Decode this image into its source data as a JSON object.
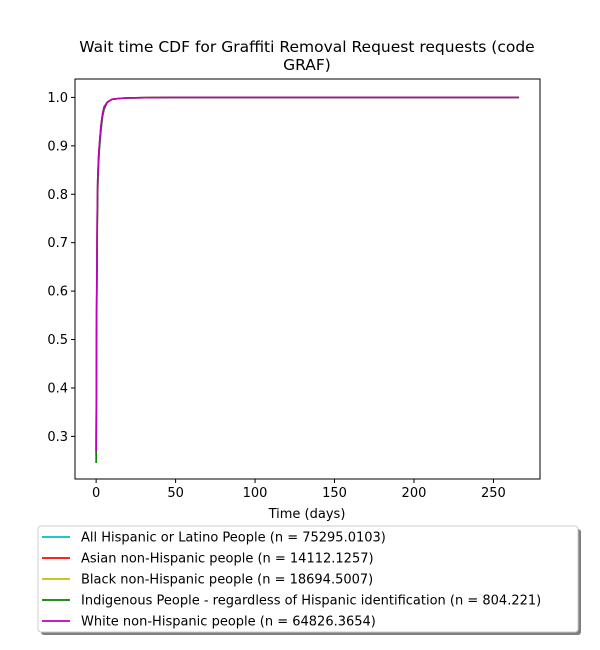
{
  "chart_data": {
    "type": "line",
    "title_line1": "Wait time CDF for Graffiti Removal Request  requests (code",
    "title_line2": "GRAF)",
    "xlabel": "Time (days)",
    "ylabel": "",
    "xlim": [
      -13.3,
      279.3
    ],
    "ylim": [
      0.212,
      1.038
    ],
    "xticks": [
      0,
      50,
      100,
      150,
      200,
      250
    ],
    "xtick_labels": [
      "0",
      "50",
      "100",
      "150",
      "200",
      "250"
    ],
    "yticks": [
      0.3,
      0.4,
      0.5,
      0.6,
      0.7,
      0.8,
      0.9,
      1.0
    ],
    "ytick_labels": [
      "0.3",
      "0.4",
      "0.5",
      "0.6",
      "0.7",
      "0.8",
      "0.9",
      "1.0"
    ],
    "grid": false,
    "legend_position": "below",
    "series": [
      {
        "name": "All Hispanic or Latino People (n = 75295.0103)",
        "color": "#00bfbf",
        "x": [
          0,
          0.3,
          0.7,
          1,
          1.5,
          2,
          3,
          4,
          5,
          7,
          10,
          15,
          20,
          30,
          50,
          100,
          266
        ],
        "y": [
          0.26,
          0.55,
          0.75,
          0.83,
          0.87,
          0.9,
          0.94,
          0.965,
          0.98,
          0.99,
          0.996,
          0.998,
          0.999,
          0.9995,
          1.0,
          1.0,
          1.0
        ]
      },
      {
        "name": "Asian non-Hispanic people (n = 14112.1257)",
        "color": "#ff0000",
        "x": [
          0,
          0.3,
          0.7,
          1,
          1.5,
          2,
          3,
          4,
          5,
          7,
          10,
          15,
          20,
          30,
          50,
          100,
          266
        ],
        "y": [
          0.27,
          0.56,
          0.76,
          0.83,
          0.875,
          0.9,
          0.94,
          0.965,
          0.98,
          0.99,
          0.996,
          0.998,
          0.999,
          0.9995,
          1.0,
          1.0,
          1.0
        ]
      },
      {
        "name": "Black non-Hispanic people (n = 18694.5007)",
        "color": "#bfbf00",
        "x": [
          0,
          0.3,
          0.7,
          1,
          1.5,
          2,
          3,
          4,
          5,
          7,
          10,
          15,
          20,
          30,
          50,
          100,
          266
        ],
        "y": [
          0.26,
          0.55,
          0.75,
          0.82,
          0.87,
          0.9,
          0.935,
          0.96,
          0.978,
          0.99,
          0.996,
          0.998,
          0.999,
          0.9995,
          1.0,
          1.0,
          1.0
        ]
      },
      {
        "name": "Indigenous People - regardless of Hispanic identification (n = 804.221)",
        "color": "#008000",
        "x": [
          0,
          0.3,
          0.7,
          1,
          1.5,
          2,
          3,
          4,
          5,
          7,
          10,
          15,
          20,
          30,
          50,
          100,
          266
        ],
        "y": [
          0.245,
          0.52,
          0.72,
          0.81,
          0.86,
          0.89,
          0.93,
          0.96,
          0.975,
          0.99,
          0.996,
          0.998,
          0.999,
          0.9995,
          1.0,
          1.0,
          1.0
        ]
      },
      {
        "name": "White non-Hispanic people (n = 64826.3654)",
        "color": "#bf00bf",
        "x": [
          0,
          0.3,
          0.7,
          1,
          1.5,
          2,
          3,
          4,
          5,
          7,
          10,
          15,
          20,
          30,
          50,
          100,
          266
        ],
        "y": [
          0.27,
          0.56,
          0.76,
          0.83,
          0.875,
          0.9,
          0.94,
          0.965,
          0.98,
          0.99,
          0.996,
          0.998,
          0.999,
          0.9995,
          1.0,
          1.0,
          1.0
        ]
      }
    ]
  }
}
